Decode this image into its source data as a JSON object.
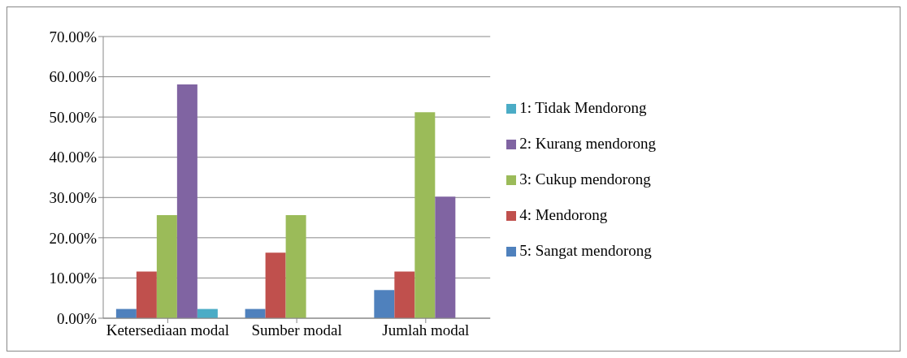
{
  "chart_data": {
    "type": "bar",
    "categories": [
      "Ketersediaan modal",
      "Sumber modal",
      "Jumlah modal"
    ],
    "series": [
      {
        "name": "5: Sangat mendorong",
        "color": "#4f81bd",
        "values": [
          2.3,
          2.3,
          7.0
        ]
      },
      {
        "name": "4: Mendorong",
        "color": "#c0504d",
        "values": [
          11.6,
          16.3,
          11.6
        ]
      },
      {
        "name": "3: Cukup mendorong",
        "color": "#9bbb59",
        "values": [
          25.6,
          25.6,
          51.2
        ]
      },
      {
        "name": "2: Kurang mendorong",
        "color": "#8064a2",
        "values": [
          58.1,
          null,
          30.2
        ]
      },
      {
        "name": "1: Tidak Mendorong",
        "color": "#4bacc6",
        "values": [
          2.3,
          null,
          null
        ]
      }
    ],
    "ylim": [
      0,
      70
    ],
    "yticks": [
      {
        "value": 0,
        "label": "0.00%"
      },
      {
        "value": 10,
        "label": "10.00%"
      },
      {
        "value": 20,
        "label": "20.00%"
      },
      {
        "value": 30,
        "label": "30.00%"
      },
      {
        "value": 40,
        "label": "40.00%"
      },
      {
        "value": 50,
        "label": "50.00%"
      },
      {
        "value": 60,
        "label": "60.00%"
      },
      {
        "value": 70,
        "label": "70.00%"
      }
    ],
    "grid": "y",
    "legend": "right"
  }
}
